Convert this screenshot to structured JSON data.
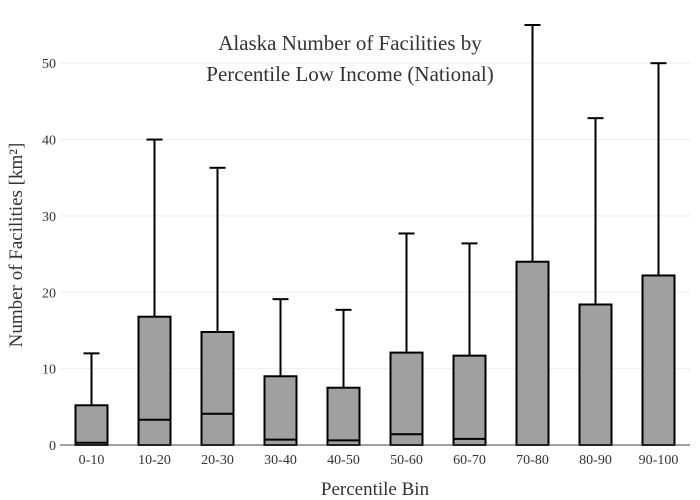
{
  "chart_data": {
    "type": "box",
    "title_lines": [
      "Alaska Number of Facilities by",
      "Percentile Low Income (National)"
    ],
    "xlabel": "Percentile Bin",
    "ylabel": "Number of Facilities  [km²]",
    "ylim": [
      0,
      55
    ],
    "yticks": [
      0,
      10,
      20,
      30,
      40,
      50
    ],
    "colors": {
      "box_fill": "#a0a0a0",
      "box_stroke": "#000000",
      "grid": "#eeeeee"
    },
    "categories": [
      "0-10",
      "10-20",
      "20-30",
      "30-40",
      "40-50",
      "50-60",
      "60-70",
      "70-80",
      "80-90",
      "90-100"
    ],
    "boxes": [
      {
        "bin": "0-10",
        "q1": 0.0,
        "median": 0.3,
        "q3": 5.2,
        "whisker_low": 0,
        "whisker_high": 12.0
      },
      {
        "bin": "10-20",
        "q1": 0.0,
        "median": 3.3,
        "q3": 16.8,
        "whisker_low": 0,
        "whisker_high": 40.0
      },
      {
        "bin": "20-30",
        "q1": 0.0,
        "median": 4.1,
        "q3": 14.8,
        "whisker_low": 0,
        "whisker_high": 36.3
      },
      {
        "bin": "30-40",
        "q1": 0.0,
        "median": 0.7,
        "q3": 9.0,
        "whisker_low": 0,
        "whisker_high": 19.1
      },
      {
        "bin": "40-50",
        "q1": 0.0,
        "median": 0.6,
        "q3": 7.5,
        "whisker_low": 0,
        "whisker_high": 17.7
      },
      {
        "bin": "50-60",
        "q1": 0.0,
        "median": 1.4,
        "q3": 12.1,
        "whisker_low": 0,
        "whisker_high": 27.7
      },
      {
        "bin": "60-70",
        "q1": 0.0,
        "median": 0.8,
        "q3": 11.7,
        "whisker_low": 0,
        "whisker_high": 26.4
      },
      {
        "bin": "70-80",
        "q1": 0.0,
        "median": 0.0,
        "q3": 24.0,
        "whisker_low": 0,
        "whisker_high": 55.0
      },
      {
        "bin": "80-90",
        "q1": 0.0,
        "median": 0.0,
        "q3": 18.4,
        "whisker_low": 0,
        "whisker_high": 42.8
      },
      {
        "bin": "90-100",
        "q1": 0.0,
        "median": 0.0,
        "q3": 22.2,
        "whisker_low": 0,
        "whisker_high": 50.0
      }
    ]
  }
}
